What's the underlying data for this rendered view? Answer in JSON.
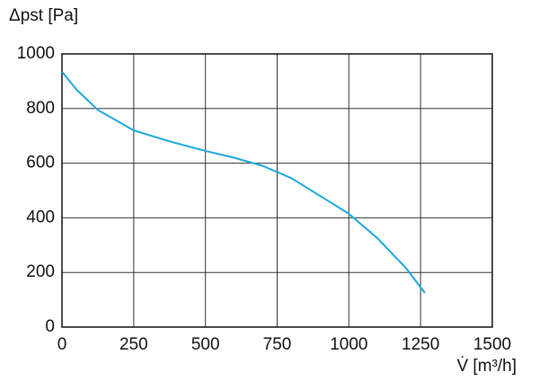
{
  "chart_data": {
    "type": "line",
    "ylabel": "Δpst [Pa]",
    "xlabel": "V̇ [m³/h]",
    "x": [
      0,
      50,
      125,
      250,
      375,
      500,
      600,
      700,
      800,
      900,
      1000,
      1100,
      1200,
      1265
    ],
    "series": [
      {
        "color": "#1aa7dd",
        "values": [
          935,
          870,
          795,
          720,
          680,
          645,
          620,
          590,
          545,
          480,
          415,
          325,
          215,
          125
        ]
      }
    ],
    "xlim": [
      0,
      1500
    ],
    "xticks": [
      0,
      250,
      500,
      750,
      1000,
      1250,
      1500
    ],
    "ylim": [
      0,
      1000
    ],
    "yticks": [
      0,
      200,
      400,
      600,
      800,
      1000
    ],
    "grid": true
  }
}
